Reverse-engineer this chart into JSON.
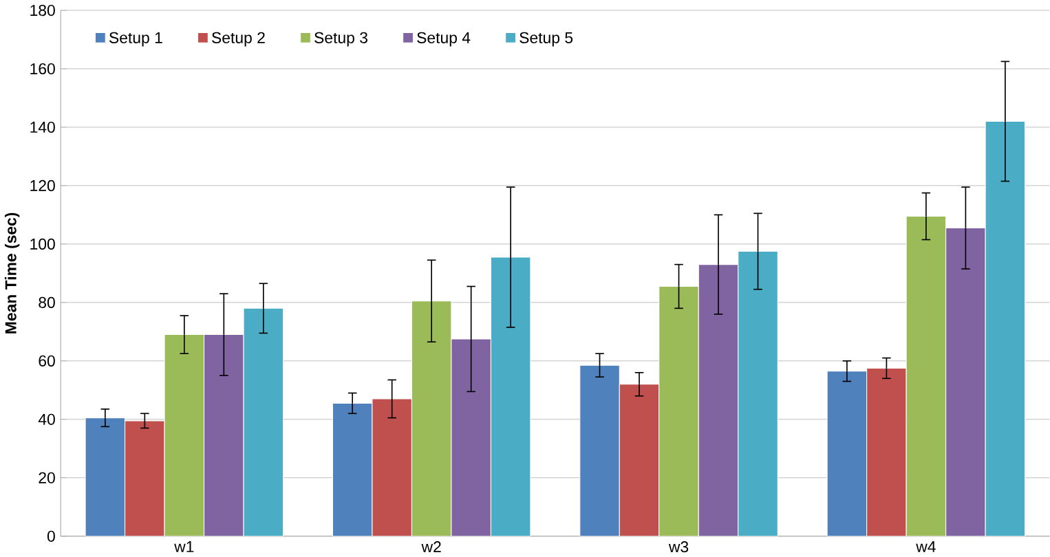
{
  "chart_data": {
    "type": "bar",
    "ylabel": "Mean Time (sec)",
    "categories": [
      "w1",
      "w2",
      "w3",
      "w4"
    ],
    "series": [
      {
        "name": "Setup 1",
        "color": "#4f81bd",
        "values": [
          40.5,
          45.5,
          58.5,
          56.5
        ],
        "errors": [
          3,
          3.5,
          4,
          3.5
        ]
      },
      {
        "name": "Setup 2",
        "color": "#c0504d",
        "values": [
          39.5,
          47,
          52,
          57.5
        ],
        "errors": [
          2.5,
          6.5,
          4,
          3.5
        ]
      },
      {
        "name": "Setup 3",
        "color": "#9bbb59",
        "values": [
          69,
          80.5,
          85.5,
          109.5
        ],
        "errors": [
          6.5,
          14,
          7.5,
          8
        ]
      },
      {
        "name": "Setup 4",
        "color": "#8064a2",
        "values": [
          69,
          67.5,
          93,
          105.5
        ],
        "errors": [
          14,
          18,
          17,
          14
        ]
      },
      {
        "name": "Setup 5",
        "color": "#4bacc6",
        "values": [
          78,
          95.5,
          97.5,
          142
        ],
        "errors": [
          8.5,
          24,
          13,
          20.5
        ]
      }
    ],
    "ylim": [
      0,
      180
    ],
    "yticks": [
      0,
      20,
      40,
      60,
      80,
      100,
      120,
      140,
      160,
      180
    ],
    "grid": "y",
    "legend": "top"
  }
}
